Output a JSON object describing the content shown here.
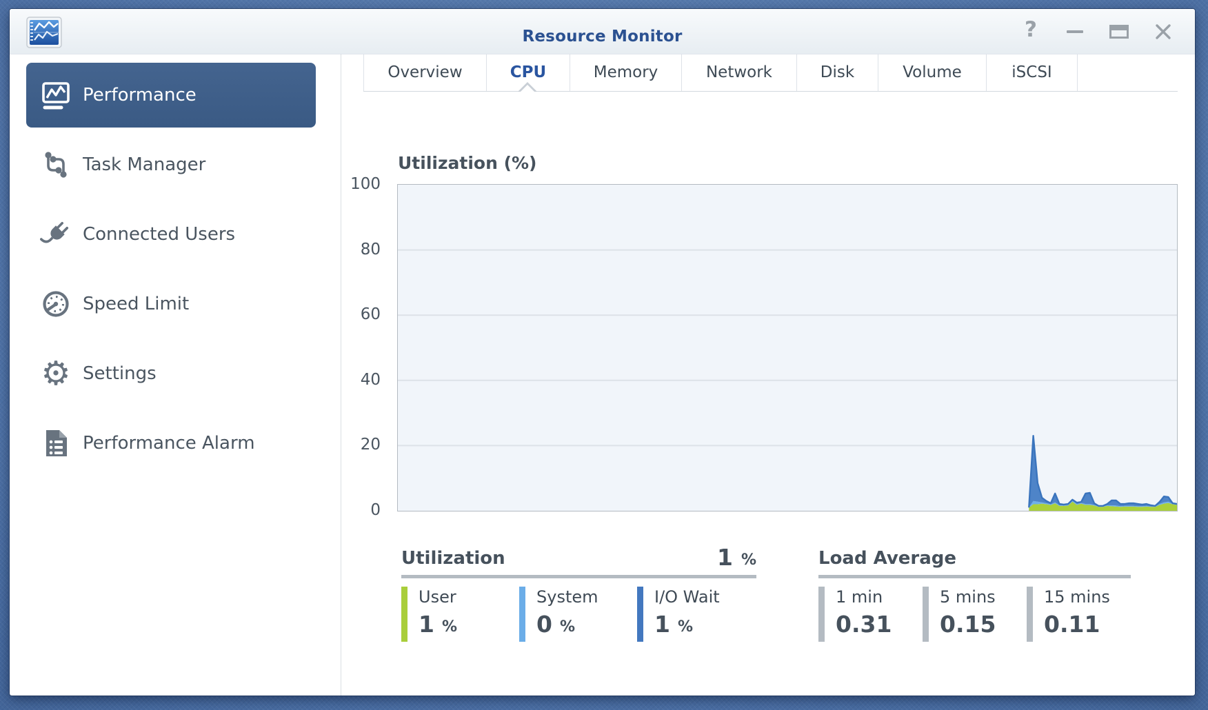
{
  "window": {
    "title": "Resource Monitor"
  },
  "controls": {
    "help": "help-icon",
    "minimize": "minimize-icon",
    "maximize": "maximize-icon",
    "close": "close-icon"
  },
  "sidebar": {
    "items": [
      {
        "label": "Performance",
        "icon": "line-chart-icon",
        "active": true
      },
      {
        "label": "Task Manager",
        "icon": "task-nodes-icon",
        "active": false
      },
      {
        "label": "Connected Users",
        "icon": "plug-icon",
        "active": false
      },
      {
        "label": "Speed Limit",
        "icon": "gauge-icon",
        "active": false
      },
      {
        "label": "Settings",
        "icon": "gear-icon",
        "active": false
      },
      {
        "label": "Performance Alarm",
        "icon": "report-list-icon",
        "active": false
      }
    ]
  },
  "tabs": {
    "items": [
      {
        "label": "Overview",
        "active": false
      },
      {
        "label": "CPU",
        "active": true
      },
      {
        "label": "Memory",
        "active": false
      },
      {
        "label": "Network",
        "active": false
      },
      {
        "label": "Disk",
        "active": false
      },
      {
        "label": "Volume",
        "active": false
      },
      {
        "label": "iSCSI",
        "active": false
      }
    ]
  },
  "chart_data": {
    "type": "area",
    "stacked": true,
    "title": "Utilization (%)",
    "ylim": [
      0,
      100
    ],
    "yticks": [
      100,
      80,
      60,
      40,
      20,
      0
    ],
    "grid": true,
    "x_start_fraction": 0.81,
    "plot_bg": "#f1f5fa",
    "line_color": "#3a74bd",
    "series": [
      {
        "name": "User",
        "color": "#abd03a",
        "values": [
          1,
          2,
          2,
          2.2,
          2,
          1.8,
          2.3,
          1.5,
          1.5,
          1.6,
          2.8,
          1.8,
          2.2,
          1.8,
          1.8,
          1.6,
          1.2,
          1.2,
          1.5,
          1.4,
          1.3,
          1.2,
          1.3,
          1.3,
          1.3,
          1.2,
          1.2,
          1.3,
          1.2,
          1.2,
          1.8,
          2.2,
          2.4,
          2.0,
          1.8
        ]
      },
      {
        "name": "System",
        "color": "#6fb0e8",
        "values": [
          0,
          1,
          0.8,
          0.4,
          0.3,
          0.2,
          0.3,
          0.2,
          0.1,
          0.2,
          0.4,
          0.3,
          0.2,
          0.3,
          0.3,
          0.2,
          0.1,
          0.1,
          0.2,
          0.3,
          0.3,
          0.2,
          0.2,
          0.2,
          0.2,
          0.2,
          0.2,
          0.2,
          0.1,
          0.1,
          0.3,
          0.4,
          0.4,
          0.2,
          0.2
        ]
      },
      {
        "name": "I/O Wait",
        "color": "#4e84c8",
        "values": [
          0,
          20,
          5.7,
          1.4,
          0.7,
          0.3,
          2.7,
          0.4,
          0.3,
          0.3,
          0.2,
          0.4,
          0.3,
          3.2,
          3.4,
          0.5,
          0.2,
          0.2,
          0.4,
          1.5,
          1.6,
          0.7,
          0.6,
          0.8,
          0.8,
          0.7,
          0.5,
          0.6,
          0.4,
          0.2,
          0.6,
          1.8,
          1.4,
          0.1,
          0.1
        ]
      }
    ]
  },
  "stats": {
    "utilization": {
      "title": "Utilization",
      "value": "1",
      "unit": "%",
      "items": [
        {
          "label": "User",
          "value": "1",
          "unit": "%",
          "color": "#a9ce3b"
        },
        {
          "label": "System",
          "value": "0",
          "unit": "%",
          "color": "#6bade8"
        },
        {
          "label": "I/O Wait",
          "value": "1",
          "unit": "%",
          "color": "#4378bf"
        }
      ]
    },
    "load": {
      "title": "Load Average",
      "items": [
        {
          "label": "1 min",
          "value": "0.31"
        },
        {
          "label": "5 mins",
          "value": "0.15"
        },
        {
          "label": "15 mins",
          "value": "0.11"
        }
      ]
    }
  }
}
